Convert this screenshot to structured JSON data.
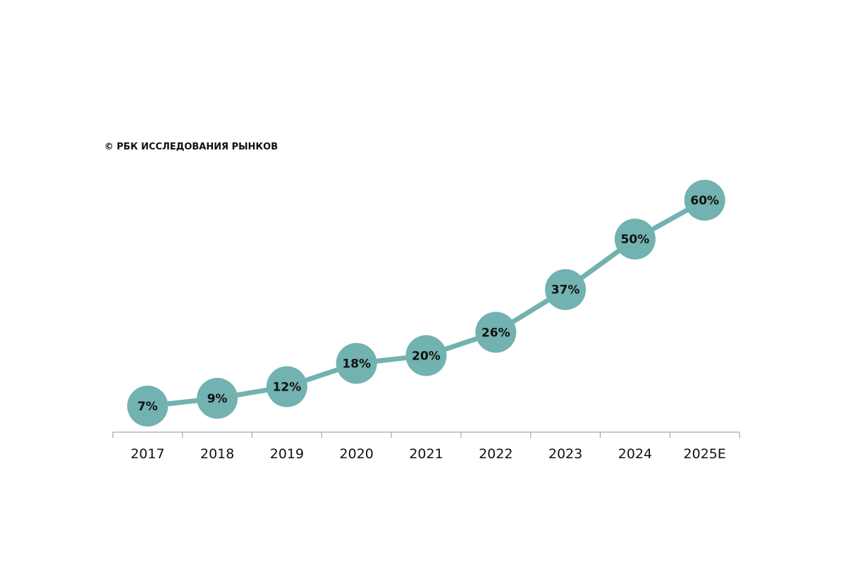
{
  "source": "© РБК ИССЛЕДОВАНИЯ РЫНКОВ",
  "chart_data": {
    "type": "line",
    "title": "",
    "xlabel": "",
    "ylabel": "",
    "categories": [
      "2017",
      "2018",
      "2019",
      "2020",
      "2021",
      "2022",
      "2023",
      "2024",
      "2025E"
    ],
    "values": [
      7,
      9,
      12,
      18,
      20,
      26,
      37,
      50,
      60
    ],
    "value_labels": [
      "7%",
      "9%",
      "12%",
      "18%",
      "20%",
      "26%",
      "37%",
      "50%",
      "60%"
    ],
    "ylim": [
      0,
      70
    ],
    "grid": false,
    "legend": "none",
    "colors": {
      "series": "#72b2b0",
      "axis": "#a6a6a6",
      "text": "#111111"
    }
  }
}
